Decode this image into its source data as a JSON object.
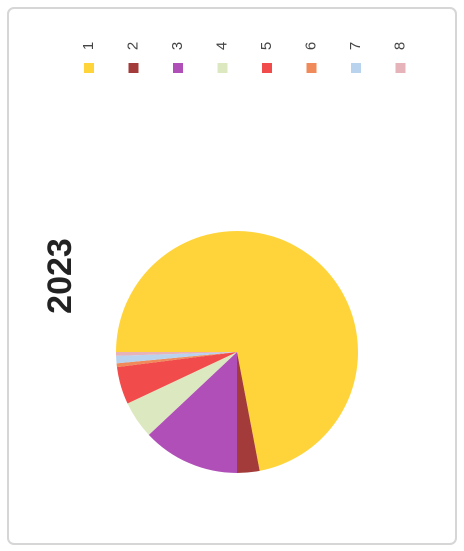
{
  "chart_data": {
    "type": "pie",
    "title": "2023",
    "categories": [
      "1",
      "2",
      "3",
      "4",
      "5",
      "6",
      "7",
      "8"
    ],
    "values": [
      72,
      3,
      13,
      5,
      5,
      0.5,
      1,
      0.5
    ],
    "colors": [
      "#ffd43b",
      "#a33b3b",
      "#b04fb8",
      "#dce8c0",
      "#f24b4b",
      "#f08a5a",
      "#b9d3ef",
      "#e7b3bb"
    ],
    "legend": "top"
  }
}
